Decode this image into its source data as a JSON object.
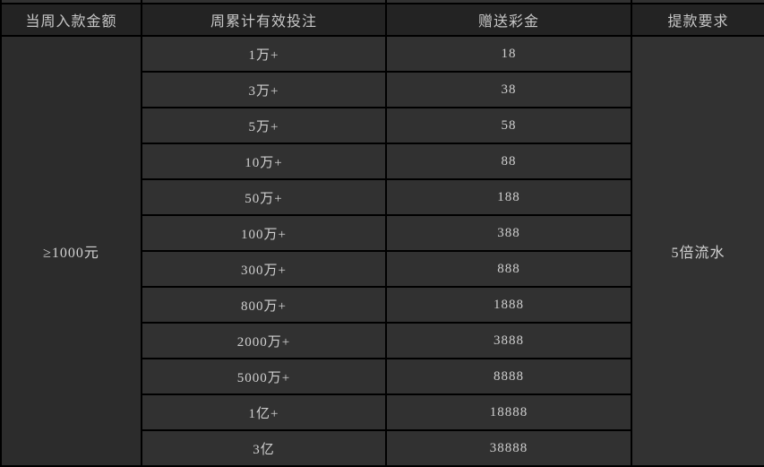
{
  "table": {
    "headers": [
      "当周入款金额",
      "周累计有效投注",
      "赠送彩金",
      "提款要求"
    ],
    "deposit_requirement": "≥1000元",
    "withdrawal_requirement": "5倍流水",
    "rows": [
      {
        "bet": "1万+",
        "bonus": "18"
      },
      {
        "bet": "3万+",
        "bonus": "38"
      },
      {
        "bet": "5万+",
        "bonus": "58"
      },
      {
        "bet": "10万+",
        "bonus": "88"
      },
      {
        "bet": "50万+",
        "bonus": "188"
      },
      {
        "bet": "100万+",
        "bonus": "388"
      },
      {
        "bet": "300万+",
        "bonus": "888"
      },
      {
        "bet": "800万+",
        "bonus": "1888"
      },
      {
        "bet": "2000万+",
        "bonus": "3888"
      },
      {
        "bet": "5000万+",
        "bonus": "8888"
      },
      {
        "bet": "1亿+",
        "bonus": "18888"
      },
      {
        "bet": "3亿",
        "bonus": "38888"
      }
    ]
  },
  "chart_data": {
    "type": "table",
    "title": "",
    "columns": [
      "当周入款金额",
      "周累计有效投注",
      "赠送彩金",
      "提款要求"
    ],
    "merged_cells": {
      "当周入款金额": "≥1000元",
      "提款要求": "5倍流水"
    },
    "rows": [
      [
        "1万+",
        18
      ],
      [
        "3万+",
        38
      ],
      [
        "5万+",
        58
      ],
      [
        "10万+",
        88
      ],
      [
        "50万+",
        188
      ],
      [
        "100万+",
        388
      ],
      [
        "300万+",
        888
      ],
      [
        "800万+",
        1888
      ],
      [
        "2000万+",
        3888
      ],
      [
        "5000万+",
        8888
      ],
      [
        "1亿+",
        18888
      ],
      [
        "3亿",
        38888
      ]
    ]
  },
  "colors": {
    "header_bg": "#232323",
    "cell_bg": "#313131",
    "merged_left_bg": "#2c2c2c",
    "merged_right_bg": "#323232",
    "border": "#000000",
    "text": "#d0d0d0"
  }
}
